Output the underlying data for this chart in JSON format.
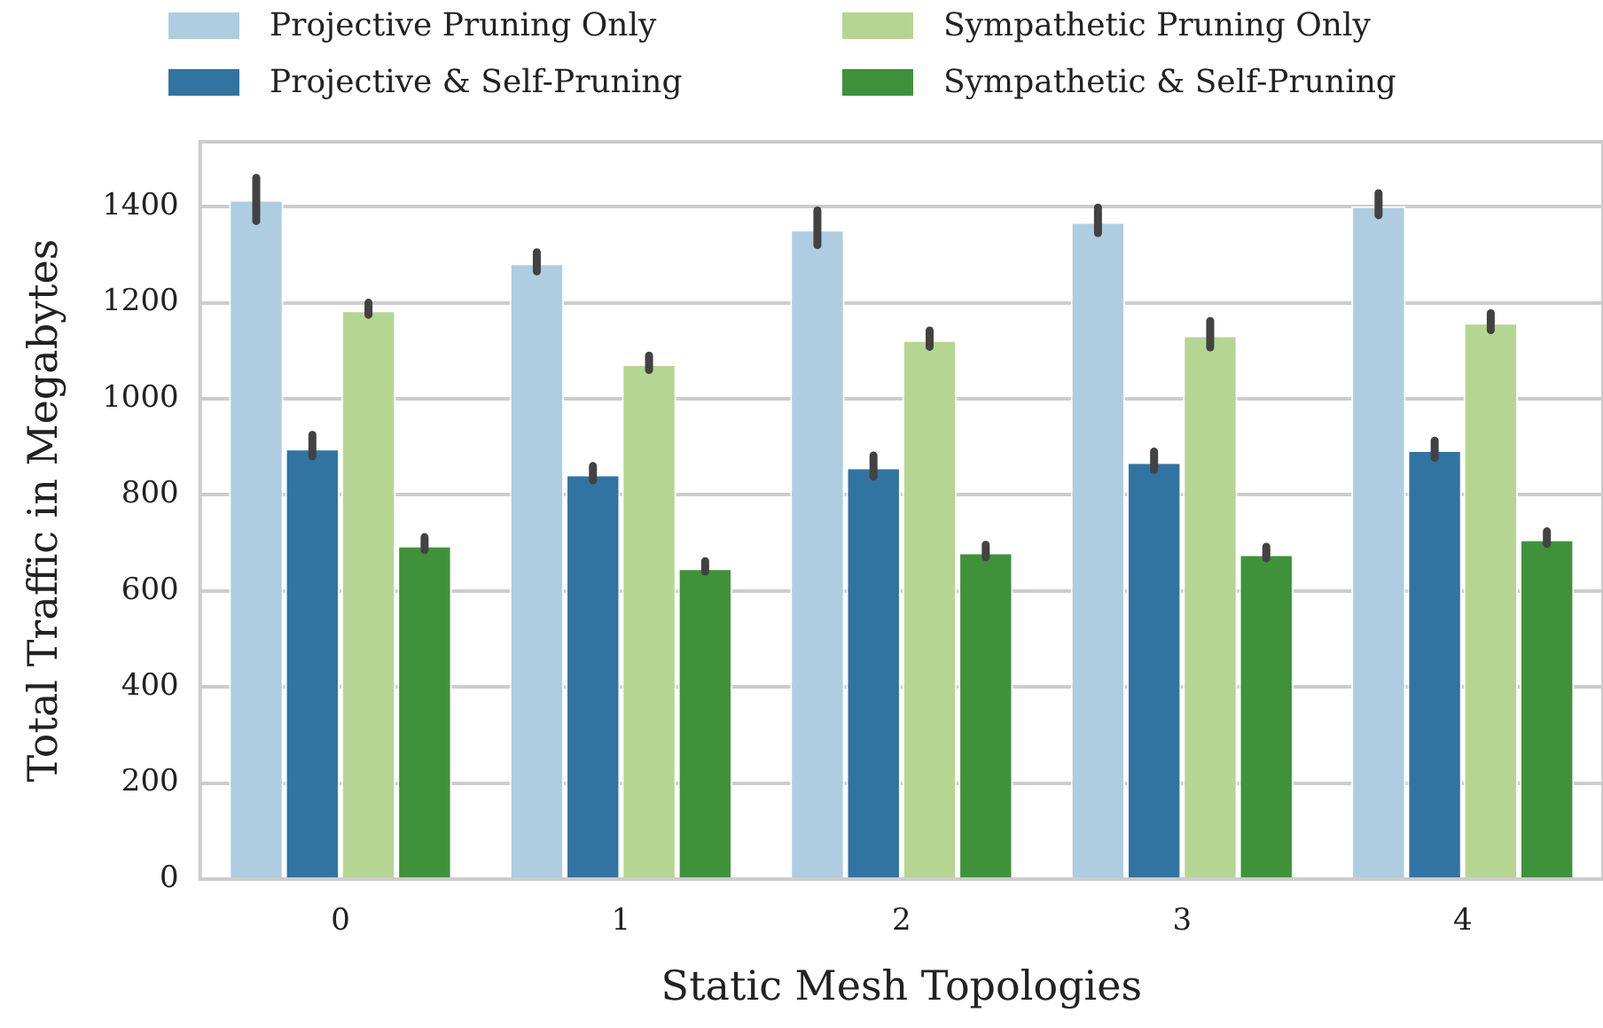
{
  "chart_data": {
    "type": "bar",
    "xlabel": "Static Mesh Topologies",
    "ylabel": "Total Traffic in Megabytes",
    "categories": [
      "0",
      "1",
      "2",
      "3",
      "4"
    ],
    "series": [
      {
        "name": "Projective Pruning Only",
        "color": "#aecde1",
        "values": [
          1414,
          1282,
          1352,
          1368,
          1401
        ],
        "errors": [
          [
            1370,
            1460
          ],
          [
            1265,
            1305
          ],
          [
            1320,
            1392
          ],
          [
            1345,
            1398
          ],
          [
            1382,
            1428
          ]
        ]
      },
      {
        "name": "Projective & Self-Pruning",
        "color": "#3274a1",
        "values": [
          896,
          842,
          857,
          868,
          893
        ],
        "errors": [
          [
            880,
            925
          ],
          [
            830,
            860
          ],
          [
            838,
            882
          ],
          [
            852,
            890
          ],
          [
            877,
            913
          ]
        ]
      },
      {
        "name": "Sympathetic Pruning Only",
        "color": "#b5d693",
        "values": [
          1184,
          1072,
          1122,
          1132,
          1158
        ],
        "errors": [
          [
            1175,
            1200
          ],
          [
            1060,
            1090
          ],
          [
            1108,
            1142
          ],
          [
            1107,
            1162
          ],
          [
            1143,
            1178
          ]
        ]
      },
      {
        "name": "Sympathetic & Self-Pruning",
        "color": "#3f923a",
        "values": [
          694,
          647,
          680,
          676,
          707
        ],
        "errors": [
          [
            685,
            712
          ],
          [
            640,
            662
          ],
          [
            670,
            696
          ],
          [
            668,
            692
          ],
          [
            698,
            724
          ]
        ]
      }
    ],
    "ylim": [
      0,
      1535
    ],
    "yticks": [
      0,
      200,
      400,
      600,
      800,
      1000,
      1200,
      1400
    ],
    "grid": "y",
    "legend": "top"
  }
}
